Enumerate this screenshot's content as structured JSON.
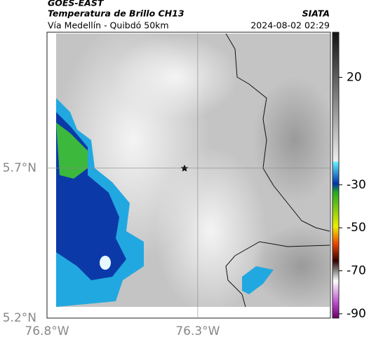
{
  "header": {
    "source": "GOES-EAST",
    "product": "Temperatura de Brillo CH13",
    "org": "SIATA",
    "route": "Vía Medellín - Quibdó 50km",
    "datetime": "2024-08-02 02:29"
  },
  "map": {
    "xlim": [
      -76.8,
      -75.86
    ],
    "ylim": [
      5.2,
      6.153
    ],
    "xticks": [
      {
        "value": -76.8,
        "label": "76.8°W"
      },
      {
        "value": -76.3,
        "label": "76.3°W"
      }
    ],
    "yticks": [
      {
        "value": 5.7,
        "label": "5.7°N"
      },
      {
        "value": 5.2,
        "label": "5.2°N"
      }
    ]
  },
  "colorbar": {
    "lim": [
      -92,
      41
    ],
    "ticks": [
      20,
      -30,
      -50,
      -70,
      -90
    ]
  }
}
